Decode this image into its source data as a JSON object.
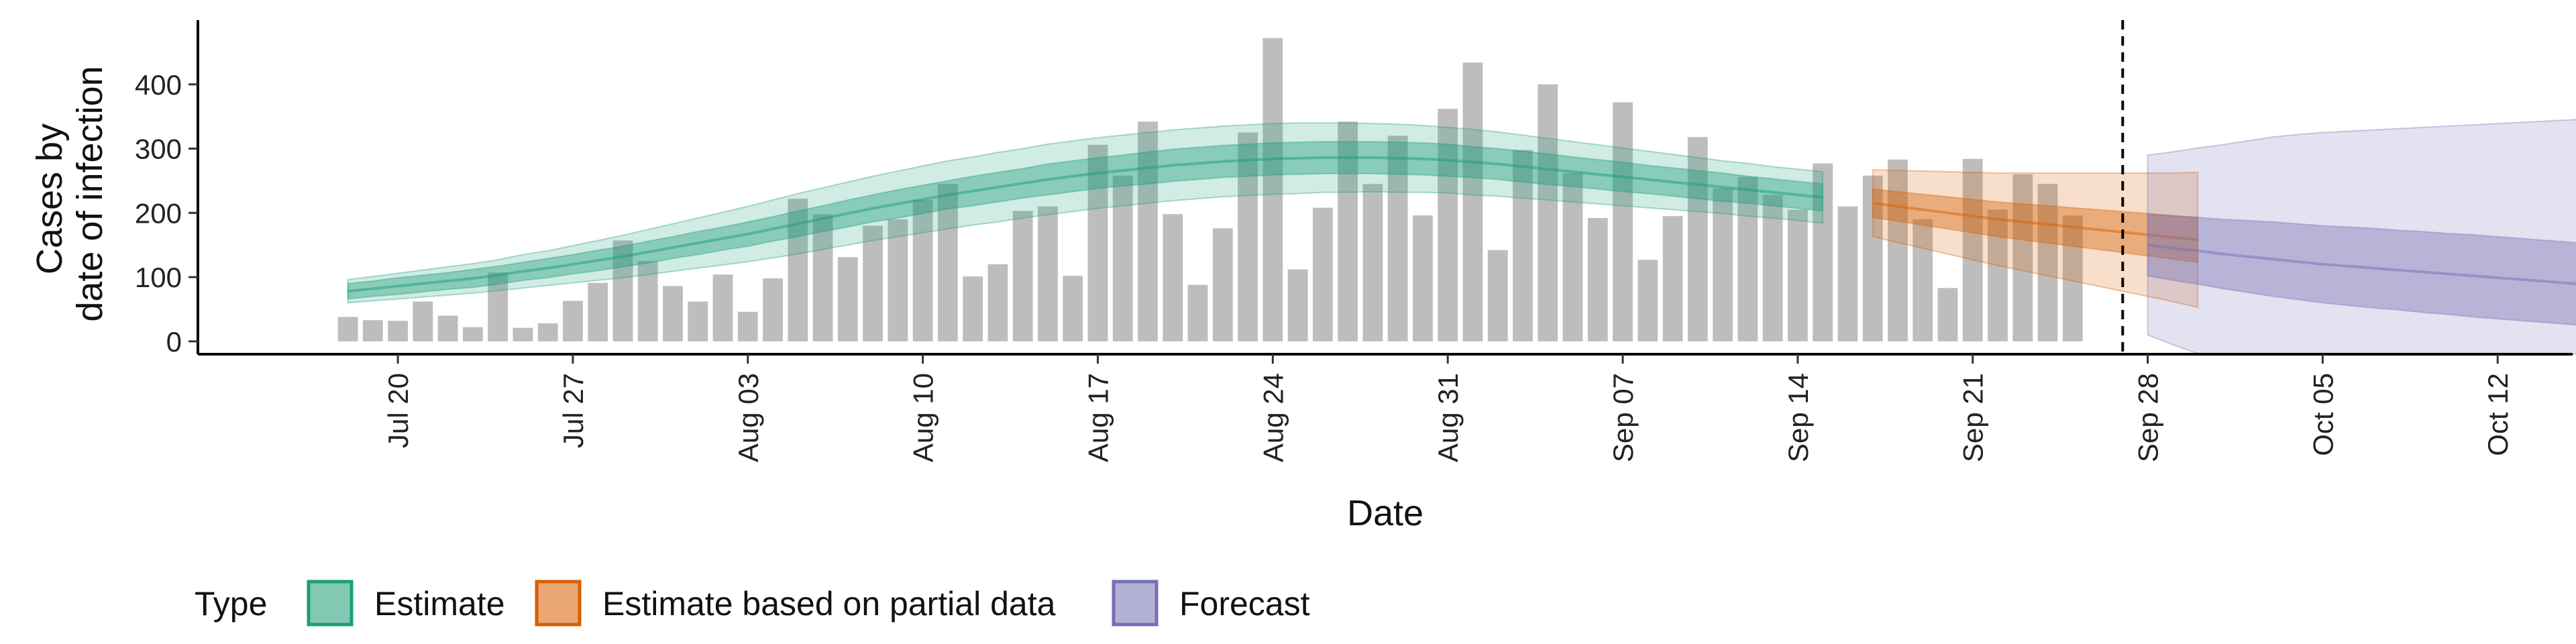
{
  "chart_data": {
    "type": "bar",
    "xlabel": "Date",
    "ylabel": [
      "Cases by",
      "date of infection"
    ],
    "ylim": [
      -20,
      500
    ],
    "yticks": [
      0,
      100,
      200,
      300,
      400
    ],
    "x_tick_labels": [
      "Jul 20",
      "Jul 27",
      "Aug 03",
      "Aug 10",
      "Aug 17",
      "Aug 24",
      "Aug 31",
      "Sep 07",
      "Sep 14",
      "Sep 21",
      "Sep 28",
      "Oct 05",
      "Oct 12"
    ],
    "x_range_days": [
      "Jul 12",
      "Oct 15"
    ],
    "bar_start_date": "Jul 18",
    "bars": [
      38,
      33,
      32,
      62,
      40,
      22,
      107,
      21,
      28,
      63,
      91,
      157,
      125,
      86,
      62,
      104,
      46,
      98,
      222,
      198,
      131,
      180,
      190,
      220,
      245,
      101,
      120,
      203,
      210,
      102,
      306,
      258,
      342,
      198,
      88,
      176,
      325,
      472,
      112,
      208,
      342,
      245,
      320,
      196,
      362,
      434,
      142,
      298,
      400,
      262,
      192,
      372,
      127,
      195,
      318,
      238,
      256,
      228,
      205,
      277,
      210,
      258,
      283,
      190,
      83,
      284,
      205,
      260,
      245,
      196
    ],
    "estimate_median": [
      78,
      82,
      86,
      90,
      94,
      98,
      103,
      109,
      114,
      120,
      126,
      132,
      139,
      146,
      153,
      160,
      167,
      175,
      183,
      191,
      199,
      207,
      214,
      221,
      228,
      234,
      240,
      246,
      252,
      257,
      262,
      266,
      270,
      274,
      277,
      280,
      282,
      284,
      285,
      286,
      286,
      286,
      285,
      284,
      282,
      279,
      276,
      272,
      268,
      264,
      260,
      256,
      252,
      248,
      244,
      240,
      236,
      232,
      228,
      224
    ],
    "estimate_inner_width": [
      12,
      12,
      13,
      13,
      13,
      14,
      14,
      14,
      15,
      15,
      16,
      16,
      17,
      17,
      18,
      18,
      19,
      19,
      20,
      20,
      21,
      21,
      22,
      22,
      22,
      23,
      23,
      23,
      24,
      24,
      24,
      24,
      25,
      25,
      25,
      25,
      25,
      25,
      25,
      25,
      25,
      25,
      25,
      25,
      25,
      24,
      24,
      24,
      24,
      23,
      23,
      23,
      22,
      22,
      22,
      22,
      21,
      21,
      21,
      21
    ],
    "estimate_outer_width": [
      18,
      19,
      20,
      21,
      22,
      23,
      24,
      26,
      27,
      29,
      31,
      33,
      35,
      37,
      39,
      41,
      43,
      45,
      47,
      48,
      49,
      50,
      51,
      52,
      53,
      53,
      54,
      54,
      55,
      55,
      55,
      55,
      55,
      55,
      55,
      55,
      55,
      55,
      55,
      54,
      54,
      53,
      53,
      52,
      51,
      51,
      50,
      49,
      48,
      47,
      46,
      45,
      44,
      43,
      42,
      41,
      41,
      40,
      40,
      40
    ],
    "partial_median": [
      215,
      210,
      205,
      200,
      195,
      190,
      186,
      182,
      178,
      174,
      170,
      166,
      162,
      158
    ],
    "partial_inner_width": [
      22,
      23,
      24,
      25,
      26,
      27,
      28,
      29,
      30,
      31,
      32,
      33,
      34,
      35
    ],
    "partial_outer_width": [
      52,
      56,
      60,
      64,
      68,
      72,
      76,
      80,
      84,
      88,
      92,
      96,
      100,
      105
    ],
    "forecast_median": [
      150,
      145,
      141,
      136,
      132,
      128,
      124,
      120,
      117,
      114,
      111,
      108,
      105,
      102,
      99,
      96,
      93,
      90,
      87,
      84,
      81,
      78,
      75,
      72,
      69,
      66,
      63,
      60
    ],
    "forecast_inner_width": [
      48,
      50,
      52,
      54,
      56,
      58,
      59,
      60,
      61,
      62,
      62,
      63,
      63,
      64,
      64,
      64,
      64,
      64,
      64,
      63,
      63,
      63,
      62,
      62,
      62,
      61,
      61,
      60
    ],
    "forecast_outer_width": [
      140,
      150,
      160,
      170,
      180,
      190,
      198,
      205,
      210,
      215,
      220,
      225,
      230,
      235,
      240,
      245,
      250,
      255,
      260,
      265,
      270,
      275,
      280,
      285,
      290,
      295,
      300,
      345
    ],
    "cutoff_date": "Sep 27",
    "legend": {
      "title": "Type",
      "items": [
        "Estimate",
        "Estimate based on partial data",
        "Forecast"
      ]
    },
    "colors": {
      "bars": "#BDBDBD",
      "estimate": "#1B9E77",
      "partial": "#D95F02",
      "forecast": "#7570B3",
      "axis": "#000000"
    }
  }
}
